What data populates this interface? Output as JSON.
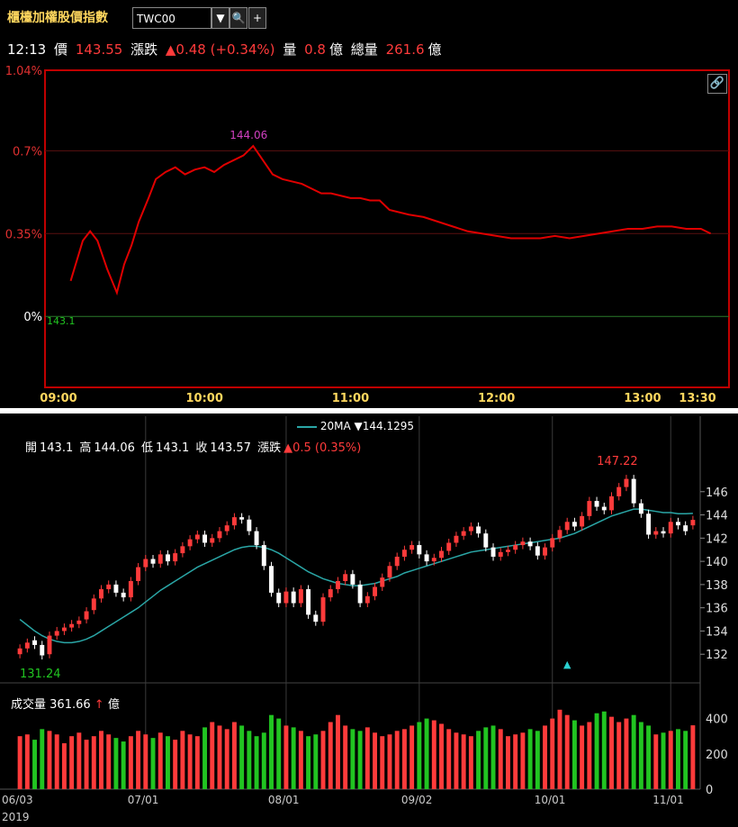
{
  "toolbar": {
    "title": "櫃檯加權股價指數",
    "symbol": "TWC00",
    "dropdown_icon": "caret-down-icon",
    "search_icon": "magnifier-icon",
    "add_icon": "plus-icon"
  },
  "quote": {
    "time": "12:13",
    "price_label": "價",
    "price": "143.55",
    "change_label": "漲跌",
    "change": "▲0.48 (+0.34%)",
    "vol_label": "量",
    "vol": "0.8",
    "vol_unit": "億",
    "total_label": "總量",
    "total": "261.6",
    "total_unit": "億"
  },
  "colors": {
    "up": "#ff3b3b",
    "down": "#21c421",
    "ma": "#2aa6a6",
    "intraday_line": "#e00000",
    "frame": "#c00000"
  },
  "chart_data": [
    {
      "type": "line",
      "title": "",
      "y_ticks": [
        "1.04%",
        "0.7%",
        "0.35%",
        "0%"
      ],
      "y_tick_values": [
        1.04,
        0.7,
        0.35,
        0
      ],
      "ylim": [
        -0.3,
        1.04
      ],
      "x_ticks": [
        "09:00",
        "10:00",
        "11:00",
        "12:00",
        "13:00",
        "13:30"
      ],
      "xlim_minutes": [
        0,
        270
      ],
      "base_label": "143.1",
      "peak_label": "144.06",
      "series": [
        {
          "x": [
            5,
            10,
            13,
            16,
            20,
            24,
            27,
            30,
            33,
            37,
            40,
            44,
            48,
            52,
            56,
            60,
            64,
            68,
            72,
            76,
            80,
            84,
            88,
            92,
            96,
            100,
            104,
            108,
            112,
            116,
            120,
            124,
            128,
            132,
            136,
            140,
            144,
            150,
            156,
            162,
            168,
            174,
            180,
            186,
            192,
            198,
            204,
            210,
            216,
            222,
            228,
            234,
            240,
            246,
            252,
            258,
            264,
            268
          ],
          "y": [
            0.15,
            0.32,
            0.36,
            0.32,
            0.2,
            0.1,
            0.22,
            0.3,
            0.4,
            0.5,
            0.58,
            0.61,
            0.63,
            0.6,
            0.62,
            0.63,
            0.61,
            0.64,
            0.66,
            0.68,
            0.72,
            0.66,
            0.6,
            0.58,
            0.57,
            0.56,
            0.54,
            0.52,
            0.52,
            0.51,
            0.5,
            0.5,
            0.49,
            0.49,
            0.45,
            0.44,
            0.43,
            0.42,
            0.4,
            0.38,
            0.36,
            0.35,
            0.34,
            0.33,
            0.33,
            0.33,
            0.34,
            0.33,
            0.34,
            0.35,
            0.36,
            0.37,
            0.37,
            0.38,
            0.38,
            0.37,
            0.37,
            0.35
          ]
        }
      ]
    },
    {
      "type": "candlestick",
      "ohlc_labels": {
        "open_label": "開",
        "open": "143.1",
        "high_label": "高",
        "high": "144.06",
        "low_label": "低",
        "low": "143.1",
        "close_label": "收",
        "close": "143.57",
        "change_label": "漲跌",
        "change": "▲0.5 (0.35%)"
      },
      "ma_legend": {
        "name": "20MA",
        "value": "▼144.1295"
      },
      "y_ticks": [
        "146",
        "144",
        "142",
        "140",
        "138",
        "136",
        "134",
        "132"
      ],
      "ylim": [
        130,
        148
      ],
      "max_label": "147.22",
      "min_label": "131.24",
      "x_ticks": [
        "06/03",
        "07/01",
        "08/01",
        "09/02",
        "10/01",
        "11/01"
      ],
      "year_label": "2019",
      "closes": [
        132.5,
        133.0,
        132.8,
        131.9,
        133.6,
        134.0,
        134.3,
        134.6,
        134.9,
        135.7,
        136.8,
        137.6,
        138.0,
        137.3,
        136.9,
        138.3,
        139.5,
        140.2,
        139.8,
        140.6,
        140.0,
        140.7,
        141.3,
        141.9,
        142.3,
        141.6,
        142.0,
        142.6,
        143.1,
        143.8,
        143.6,
        142.6,
        141.4,
        139.6,
        137.3,
        136.4,
        137.4,
        136.4,
        137.6,
        135.4,
        134.8,
        136.9,
        137.6,
        138.3,
        138.9,
        138.0,
        136.4,
        137.0,
        137.8,
        138.6,
        139.6,
        140.4,
        141.0,
        141.4,
        140.6,
        140.0,
        140.3,
        140.9,
        141.6,
        142.2,
        142.6,
        143.0,
        142.4,
        141.2,
        140.4,
        140.8,
        141.0,
        141.4,
        141.7,
        141.3,
        140.5,
        141.2,
        142.0,
        142.7,
        143.4,
        143.0,
        143.9,
        145.2,
        144.7,
        144.4,
        145.6,
        146.4,
        147.1,
        145.0,
        144.1,
        142.3,
        142.6,
        142.4,
        143.4,
        143.1,
        142.6,
        143.57
      ],
      "opens": [
        132.0,
        132.5,
        133.2,
        132.8,
        132.0,
        133.6,
        134.0,
        134.3,
        134.6,
        135.0,
        135.8,
        136.8,
        137.6,
        138.0,
        137.3,
        136.9,
        138.3,
        139.5,
        140.2,
        139.8,
        140.6,
        140.0,
        140.7,
        141.3,
        141.9,
        142.3,
        141.6,
        142.0,
        142.6,
        143.1,
        143.8,
        143.6,
        142.6,
        141.4,
        139.6,
        137.3,
        136.4,
        137.4,
        136.4,
        137.6,
        135.4,
        134.8,
        136.9,
        137.6,
        138.3,
        138.9,
        138.0,
        136.4,
        137.0,
        137.8,
        138.6,
        139.6,
        140.4,
        141.0,
        141.4,
        140.6,
        140.0,
        140.3,
        140.9,
        141.6,
        142.2,
        142.6,
        143.0,
        142.4,
        141.2,
        140.4,
        140.8,
        141.0,
        141.4,
        141.7,
        141.3,
        140.5,
        141.2,
        142.0,
        142.7,
        143.4,
        143.0,
        143.9,
        145.2,
        144.7,
        144.4,
        145.6,
        146.4,
        147.1,
        145.0,
        144.1,
        142.3,
        142.6,
        142.4,
        143.4,
        143.1,
        143.1
      ],
      "volumes": [
        300,
        310,
        280,
        340,
        330,
        310,
        260,
        300,
        320,
        280,
        300,
        330,
        310,
        290,
        270,
        300,
        330,
        310,
        290,
        320,
        300,
        280,
        330,
        310,
        300,
        350,
        380,
        360,
        340,
        380,
        360,
        330,
        300,
        320,
        420,
        400,
        360,
        350,
        330,
        300,
        310,
        330,
        380,
        420,
        360,
        340,
        330,
        350,
        320,
        300,
        310,
        330,
        340,
        360,
        380,
        400,
        390,
        370,
        340,
        320,
        310,
        300,
        330,
        350,
        360,
        340,
        300,
        310,
        320,
        340,
        330,
        360,
        400,
        450,
        420,
        390,
        360,
        380,
        430,
        440,
        410,
        380,
        400,
        420,
        380,
        360,
        310,
        320,
        330,
        340,
        330,
        361.66
      ],
      "ma20": [
        135.0,
        134.5,
        134.0,
        133.6,
        133.3,
        133.1,
        133.0,
        133.0,
        133.1,
        133.3,
        133.6,
        134.0,
        134.4,
        134.8,
        135.2,
        135.6,
        136.0,
        136.5,
        137.0,
        137.5,
        137.9,
        138.3,
        138.7,
        139.1,
        139.5,
        139.8,
        140.1,
        140.4,
        140.7,
        141.0,
        141.2,
        141.3,
        141.3,
        141.2,
        141.0,
        140.7,
        140.3,
        139.9,
        139.5,
        139.1,
        138.8,
        138.5,
        138.3,
        138.1,
        138.0,
        137.9,
        137.9,
        138.0,
        138.1,
        138.3,
        138.5,
        138.7,
        139.0,
        139.2,
        139.4,
        139.6,
        139.8,
        140.0,
        140.2,
        140.4,
        140.6,
        140.8,
        140.9,
        141.0,
        141.1,
        141.2,
        141.3,
        141.4,
        141.5,
        141.6,
        141.7,
        141.8,
        141.9,
        142.0,
        142.2,
        142.4,
        142.7,
        143.0,
        143.3,
        143.6,
        143.9,
        144.1,
        144.3,
        144.5,
        144.5,
        144.4,
        144.3,
        144.2,
        144.2,
        144.1,
        144.1,
        144.13
      ],
      "volume_ticks": [
        "400",
        "200",
        "0"
      ],
      "volume_legend": {
        "label": "成交量",
        "value": "361.66",
        "arrow": "↑",
        "unit": "億"
      }
    }
  ]
}
